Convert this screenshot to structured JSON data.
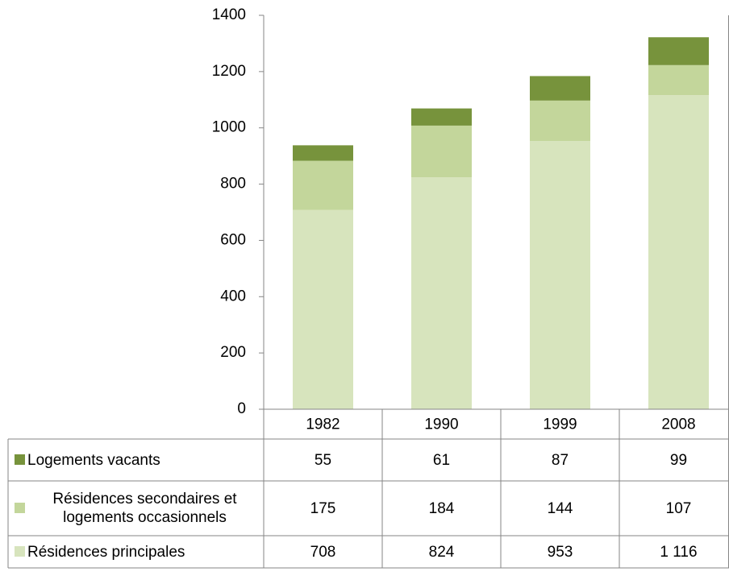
{
  "chart_data": {
    "type": "bar",
    "stacked": true,
    "categories": [
      "1982",
      "1990",
      "1999",
      "2008"
    ],
    "series": [
      {
        "name": "Logements vacants",
        "color": "#77933c",
        "values": [
          55,
          61,
          87,
          99
        ]
      },
      {
        "name": "Résidences secondaires et logements occasionnels",
        "color": "#c3d69b",
        "values": [
          175,
          184,
          144,
          107
        ]
      },
      {
        "name": "Résidences principales",
        "color": "#d7e4bd",
        "values": [
          708,
          824,
          953,
          1116
        ],
        "value_labels": [
          "708",
          "824",
          "953",
          "1 116"
        ]
      }
    ],
    "ylim": [
      0,
      1400
    ],
    "yticks": [
      0,
      200,
      400,
      600,
      800,
      1000,
      1200,
      1400
    ],
    "grid": false
  }
}
